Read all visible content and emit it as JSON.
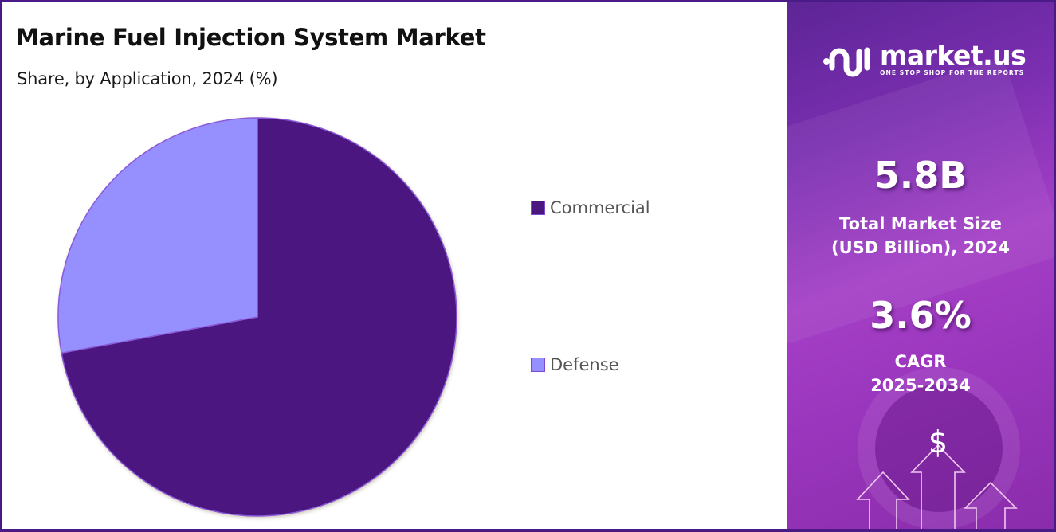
{
  "header": {
    "title": "Marine Fuel Injection System Market",
    "subtitle": "Share, by Application, 2024 (%)"
  },
  "legend": {
    "items": [
      {
        "label": "Commercial",
        "color": "#4b1680"
      },
      {
        "label": "Defense",
        "color": "#9590fd"
      }
    ]
  },
  "brand": {
    "name": "market.us",
    "tagline": "ONE STOP SHOP FOR THE REPORTS"
  },
  "stats": {
    "market_size_value": "5.8B",
    "market_size_label_line1": "Total Market Size",
    "market_size_label_line2": "(USD Billion), 2024",
    "cagr_value": "3.6%",
    "cagr_label_line1": "CAGR",
    "cagr_label_line2": "2025-2034"
  },
  "icons": {
    "dollar": "$"
  },
  "colors": {
    "frame_border": "#4a1a86",
    "commercial": "#4b1680",
    "defense": "#9590fd",
    "panel_gradient_start": "#5d2596",
    "panel_gradient_mid": "#a43fc6"
  },
  "chart_data": {
    "type": "pie",
    "title": "Marine Fuel Injection System Market",
    "subtitle": "Share, by Application, 2024 (%)",
    "categories": [
      "Commercial",
      "Defense"
    ],
    "values": [
      72.1,
      27.9
    ],
    "colors": [
      "#4b1680",
      "#9590fd"
    ],
    "legend_position": "right",
    "start_angle_deg": 0,
    "direction": "clockwise"
  }
}
